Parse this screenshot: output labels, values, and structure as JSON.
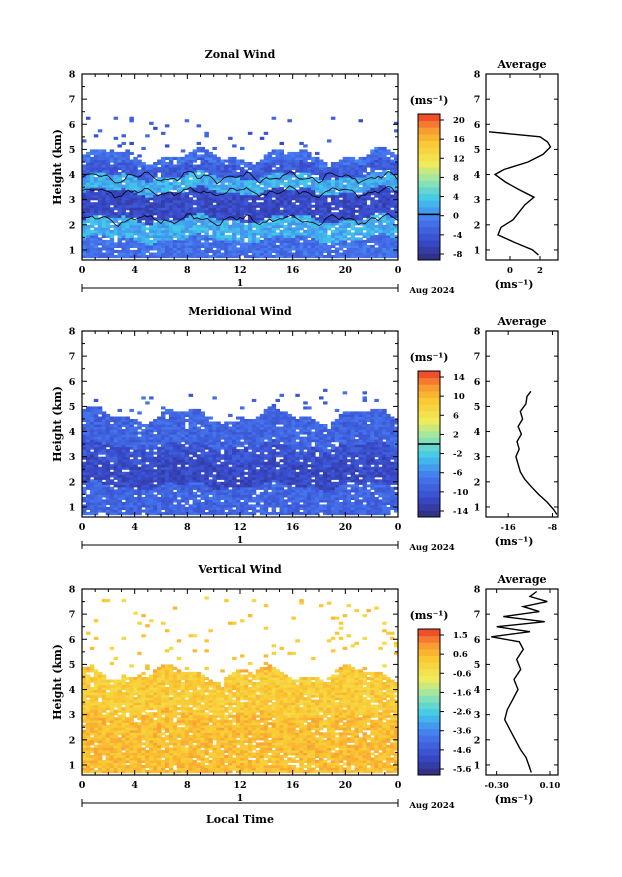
{
  "chart_data": [
    {
      "type": "heatmap",
      "title": "Zonal Wind",
      "ylabel": "Height (km)",
      "xlabel": "",
      "ylim": [
        0.6,
        8.0
      ],
      "xlim": [
        0,
        24
      ],
      "xticks": [
        "0",
        "4",
        "8",
        "12",
        "16",
        "20",
        "0"
      ],
      "yticks": [
        "1",
        "2",
        "3",
        "4",
        "5",
        "6",
        "7",
        "8"
      ],
      "date_axis": {
        "day": "1",
        "month_label": "Aug 2024"
      },
      "colorbar": {
        "unit": "(ms⁻¹)",
        "ticks": [
          "20",
          "16",
          "12",
          "8",
          "4",
          "0",
          "-4",
          "-8"
        ],
        "range": [
          -10,
          22
        ],
        "zero_line": true
      },
      "contour_level": 0,
      "field_summary": {
        "coverage_top_km": 4.7,
        "scattered_up_to_km": 6.2,
        "layers": [
          {
            "from_km": 3.9,
            "to_km": 4.4,
            "value": -4
          },
          {
            "from_km": 3.3,
            "to_km": 3.9,
            "value": 2
          },
          {
            "from_km": 2.2,
            "to_km": 3.3,
            "value": -6
          },
          {
            "from_km": 1.4,
            "to_km": 2.2,
            "value": 2
          },
          {
            "from_km": 0.7,
            "to_km": 1.4,
            "value": -2
          }
        ]
      },
      "profile": {
        "title": "Average",
        "xlabel": "(ms⁻¹)",
        "xticks": [
          "0",
          "2"
        ],
        "xlim": [
          -1.6,
          3.2
        ],
        "heights": [
          0.8,
          1.0,
          1.3,
          1.6,
          1.9,
          2.2,
          2.5,
          2.8,
          3.1,
          3.4,
          3.7,
          4.0,
          4.2,
          4.5,
          4.8,
          5.1,
          5.3,
          5.5,
          5.7
        ],
        "values": [
          1.9,
          1.5,
          0.3,
          -0.8,
          -0.6,
          0.2,
          0.6,
          1.0,
          1.6,
          0.6,
          -0.3,
          -1.0,
          -0.4,
          1.2,
          2.2,
          2.7,
          2.5,
          2.0,
          -1.4
        ]
      }
    },
    {
      "type": "heatmap",
      "title": "Meridional Wind",
      "ylabel": "Height (km)",
      "xlabel": "",
      "ylim": [
        0.6,
        8.0
      ],
      "xlim": [
        0,
        24
      ],
      "xticks": [
        "0",
        "4",
        "8",
        "12",
        "16",
        "20",
        "0"
      ],
      "yticks": [
        "1",
        "2",
        "3",
        "4",
        "5",
        "6",
        "7",
        "8"
      ],
      "date_axis": {
        "day": "1",
        "month_label": "Aug 2024"
      },
      "colorbar": {
        "unit": "(ms⁻¹)",
        "ticks": [
          "14",
          "10",
          "6",
          "2",
          "-2",
          "-6",
          "-10",
          "-14"
        ],
        "range": [
          -16,
          16
        ],
        "zero_line": true
      },
      "field_summary": {
        "coverage_top_km": 4.6,
        "scattered_up_to_km": 5.6,
        "layers": [
          {
            "from_km": 3.8,
            "to_km": 4.6,
            "value": -9
          },
          {
            "from_km": 2.8,
            "to_km": 3.4,
            "value": -11
          },
          {
            "from_km": 1.8,
            "to_km": 2.8,
            "value": -12
          },
          {
            "from_km": 0.7,
            "to_km": 1.8,
            "value": -9
          }
        ]
      },
      "profile": {
        "title": "Average",
        "xlabel": "(ms⁻¹)",
        "xticks": [
          "-16",
          "-8"
        ],
        "xlim": [
          -20,
          -7
        ],
        "heights": [
          0.7,
          0.9,
          1.2,
          1.5,
          1.8,
          2.1,
          2.4,
          2.7,
          3.0,
          3.3,
          3.6,
          3.9,
          4.2,
          4.5,
          4.8,
          5.1,
          5.4,
          5.6
        ],
        "values": [
          -7.2,
          -7.8,
          -9.0,
          -10.5,
          -11.8,
          -13.0,
          -13.8,
          -14.2,
          -14.6,
          -14.0,
          -14.4,
          -13.6,
          -14.2,
          -13.4,
          -13.8,
          -12.8,
          -12.6,
          -11.9
        ]
      }
    },
    {
      "type": "heatmap",
      "title": "Vertical Wind",
      "ylabel": "Height (km)",
      "xlabel": "Local Time",
      "ylim": [
        0.6,
        8.0
      ],
      "xlim": [
        0,
        24
      ],
      "xticks": [
        "0",
        "4",
        "8",
        "12",
        "16",
        "20",
        "0"
      ],
      "yticks": [
        "1",
        "2",
        "3",
        "4",
        "5",
        "6",
        "7",
        "8"
      ],
      "date_axis": {
        "day": "1",
        "month_label": "Aug 2024"
      },
      "colorbar": {
        "unit": "(ms⁻¹)",
        "ticks": [
          "1.5",
          "0.6",
          "-0.6",
          "-1.6",
          "-2.6",
          "-3.6",
          "-4.6",
          "-5.6"
        ],
        "range": [
          -6.2,
          2.0
        ],
        "zero_line": false
      },
      "field_summary": {
        "coverage_top_km": 4.6,
        "scattered_up_to_km": 7.6,
        "layers": [
          {
            "from_km": 3.0,
            "to_km": 4.6,
            "value": 0.2
          },
          {
            "from_km": 0.7,
            "to_km": 3.0,
            "value": 0.5
          }
        ]
      },
      "profile": {
        "title": "Average",
        "xlabel": "(ms⁻¹)",
        "xticks": [
          "-0.30",
          "0.10"
        ],
        "xlim": [
          -0.38,
          0.16
        ],
        "heights": [
          0.7,
          1.0,
          1.3,
          1.6,
          2.0,
          2.4,
          2.8,
          3.2,
          3.6,
          4.0,
          4.4,
          4.8,
          5.2,
          5.6,
          5.9,
          6.1,
          6.3,
          6.5,
          6.7,
          6.9,
          7.1,
          7.3,
          7.5,
          7.7,
          7.9
        ],
        "values": [
          -0.04,
          -0.06,
          -0.08,
          -0.12,
          -0.16,
          -0.2,
          -0.24,
          -0.22,
          -0.18,
          -0.14,
          -0.17,
          -0.12,
          -0.15,
          -0.1,
          -0.13,
          -0.34,
          -0.05,
          -0.3,
          0.06,
          -0.25,
          0.02,
          -0.1,
          0.08,
          -0.05,
          0.0
        ]
      }
    }
  ]
}
